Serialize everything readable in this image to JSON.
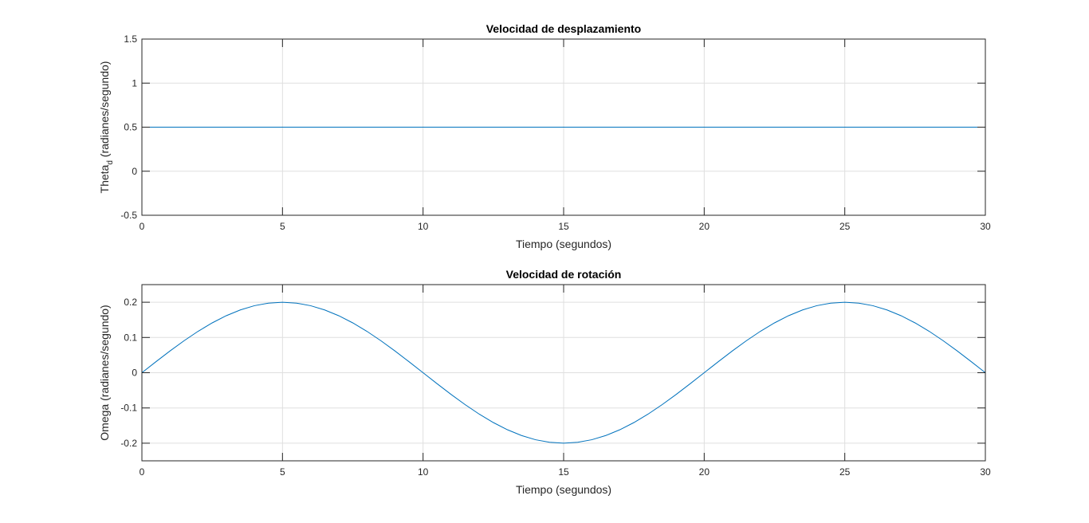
{
  "chart_data": [
    {
      "type": "line",
      "title": "Velocidad de desplazamiento",
      "xlabel": "Tiempo (segundos)",
      "ylabel_main": "Theta",
      "ylabel_sub": "d",
      "ylabel_rest": " (radianes/segundo)",
      "xlim": [
        0,
        30
      ],
      "ylim": [
        -0.5,
        1.5
      ],
      "xticks": [
        0,
        5,
        10,
        15,
        20,
        25,
        30
      ],
      "yticks": [
        -0.5,
        0,
        0.5,
        1,
        1.5
      ],
      "xtick_labels": [
        "0",
        "5",
        "10",
        "15",
        "20",
        "25",
        "30"
      ],
      "ytick_labels": [
        "-0.5",
        "0",
        "0.5",
        "1",
        "1.5"
      ],
      "grid": true,
      "line_color": "#0072bd",
      "series": [
        {
          "x": [
            0,
            30
          ],
          "y": [
            0.5,
            0.5
          ]
        }
      ]
    },
    {
      "type": "line",
      "title": "Velocidad de rotación",
      "xlabel": "Tiempo (segundos)",
      "ylabel_main": "Omega (radianes/segundo)",
      "ylabel_sub": "",
      "ylabel_rest": "",
      "xlim": [
        0,
        30
      ],
      "ylim": [
        -0.25,
        0.25
      ],
      "xticks": [
        0,
        5,
        10,
        15,
        20,
        25,
        30
      ],
      "yticks": [
        -0.2,
        -0.1,
        0,
        0.1,
        0.2
      ],
      "xtick_labels": [
        "0",
        "5",
        "10",
        "15",
        "20",
        "25",
        "30"
      ],
      "ytick_labels": [
        "-0.2",
        "-0.1",
        "0",
        "0.1",
        "0.2"
      ],
      "grid": true,
      "line_color": "#0072bd",
      "series": [
        {
          "x": [
            0,
            0.5,
            1,
            1.5,
            2,
            2.5,
            3,
            3.5,
            4,
            4.5,
            5,
            5.5,
            6,
            6.5,
            7,
            7.5,
            8,
            8.5,
            9,
            9.5,
            10,
            10.5,
            11,
            11.5,
            12,
            12.5,
            13,
            13.5,
            14,
            14.5,
            15,
            15.5,
            16,
            16.5,
            17,
            17.5,
            18,
            18.5,
            19,
            19.5,
            20,
            20.5,
            21,
            21.5,
            22,
            22.5,
            23,
            23.5,
            24,
            24.5,
            25,
            25.5,
            26,
            26.5,
            27,
            27.5,
            28,
            28.5,
            29,
            29.5,
            30
          ],
          "y": [
            0,
            0.0313,
            0.0618,
            0.0908,
            0.1176,
            0.1414,
            0.1618,
            0.1782,
            0.1902,
            0.1975,
            0.2,
            0.1975,
            0.1902,
            0.1782,
            0.1618,
            0.1414,
            0.1176,
            0.0908,
            0.0618,
            0.0313,
            0,
            -0.0313,
            -0.0618,
            -0.0908,
            -0.1176,
            -0.1414,
            -0.1618,
            -0.1782,
            -0.1902,
            -0.1975,
            -0.2,
            -0.1975,
            -0.1902,
            -0.1782,
            -0.1618,
            -0.1414,
            -0.1176,
            -0.0908,
            -0.0618,
            -0.0313,
            0,
            0.0313,
            0.0618,
            0.0908,
            0.1176,
            0.1414,
            0.1618,
            0.1782,
            0.1902,
            0.1975,
            0.2,
            0.1975,
            0.1902,
            0.1782,
            0.1618,
            0.1414,
            0.1176,
            0.0908,
            0.0618,
            0.0313,
            0
          ]
        }
      ]
    }
  ]
}
